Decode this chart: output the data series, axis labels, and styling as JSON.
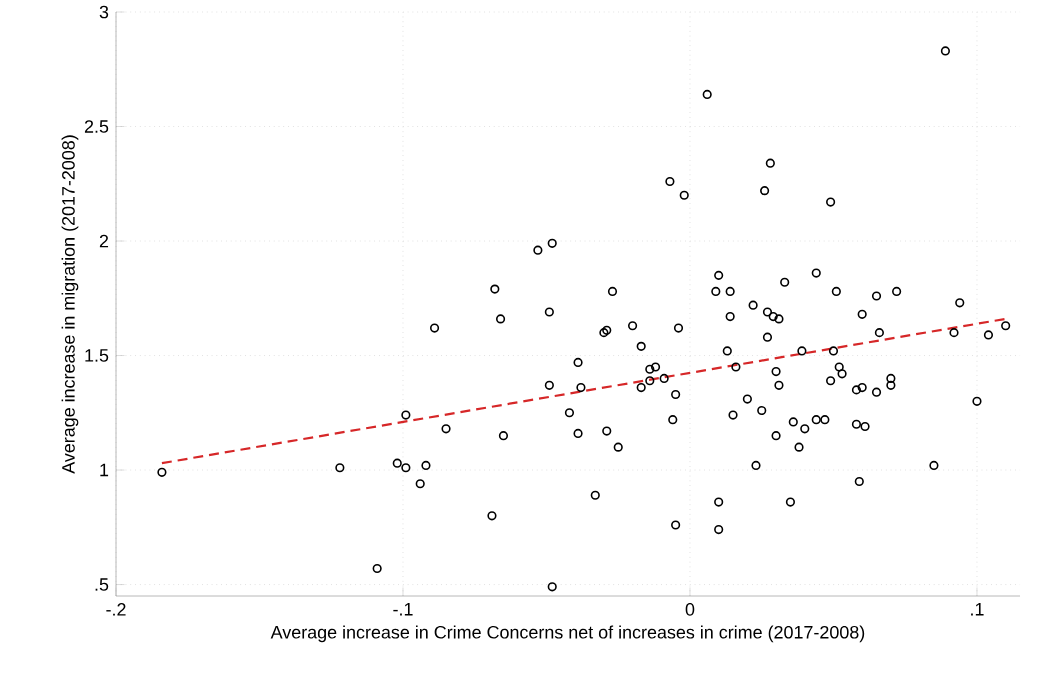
{
  "chart_data": {
    "type": "scatter",
    "xlabel": "Average increase in Crime Concerns net of increases in crime (2017-2008)",
    "ylabel": "Average increase in migration (2017-2008)",
    "xlim": [
      -0.2,
      0.115
    ],
    "ylim": [
      0.45,
      3
    ],
    "xticks": [
      {
        "value": -0.2,
        "label": "-.2"
      },
      {
        "value": -0.1,
        "label": "-.1"
      },
      0,
      {
        "value": 0.1,
        "label": ".1"
      }
    ],
    "yticks": [
      {
        "value": 0.5,
        "label": ".5"
      },
      1,
      1.5,
      2,
      2.5,
      3
    ],
    "grid": true,
    "series": [
      {
        "marker": "circle",
        "color": "#000000",
        "x": [
          -0.068,
          -0.053,
          -0.048,
          0.089,
          0.006,
          -0.007,
          -0.002,
          0.028,
          0.026,
          0.049,
          0.01,
          0.009,
          0.014,
          0.033,
          0.044,
          0.051,
          0.065,
          0.072,
          -0.027,
          0.094,
          -0.049,
          -0.066,
          -0.089,
          -0.049,
          -0.099,
          -0.085,
          -0.065,
          -0.184,
          -0.122,
          -0.102,
          -0.099,
          -0.092,
          -0.094,
          -0.069,
          -0.109,
          -0.048,
          0.022,
          0.014,
          0.027,
          0.029,
          0.031,
          0.06,
          0.066,
          0.092,
          0.104,
          0.11,
          -0.03,
          -0.029,
          -0.02,
          -0.004,
          -0.017,
          -0.039,
          -0.038,
          -0.014,
          -0.012,
          -0.014,
          -0.009,
          -0.017,
          -0.005,
          -0.006,
          -0.042,
          -0.039,
          -0.029,
          -0.025,
          -0.033,
          -0.005,
          0.013,
          0.016,
          0.027,
          0.03,
          0.031,
          0.039,
          0.02,
          0.015,
          0.025,
          0.03,
          0.036,
          0.04,
          0.038,
          0.044,
          0.047,
          0.023,
          0.01,
          0.01,
          0.035,
          0.05,
          0.052,
          0.053,
          0.049,
          0.058,
          0.06,
          0.065,
          0.07,
          0.07,
          0.058,
          0.061,
          0.059,
          0.085,
          0.1
        ],
        "values": [
          1.79,
          1.96,
          1.99,
          2.83,
          2.64,
          2.26,
          2.2,
          2.34,
          2.22,
          2.17,
          1.85,
          1.78,
          1.78,
          1.82,
          1.86,
          1.78,
          1.76,
          1.78,
          1.78,
          1.73,
          1.69,
          1.66,
          1.62,
          1.37,
          1.24,
          1.18,
          1.15,
          0.99,
          1.01,
          1.03,
          1.01,
          1.02,
          0.94,
          0.8,
          0.57,
          0.49,
          1.72,
          1.67,
          1.69,
          1.67,
          1.66,
          1.68,
          1.6,
          1.6,
          1.59,
          1.63,
          1.6,
          1.61,
          1.63,
          1.62,
          1.54,
          1.47,
          1.36,
          1.44,
          1.45,
          1.39,
          1.4,
          1.36,
          1.33,
          1.22,
          1.25,
          1.16,
          1.17,
          1.1,
          0.89,
          0.76,
          1.52,
          1.45,
          1.58,
          1.43,
          1.37,
          1.52,
          1.31,
          1.24,
          1.26,
          1.15,
          1.21,
          1.18,
          1.1,
          1.22,
          1.22,
          1.02,
          0.86,
          0.74,
          0.86,
          1.52,
          1.45,
          1.42,
          1.39,
          1.35,
          1.36,
          1.34,
          1.37,
          1.4,
          1.2,
          1.19,
          0.95,
          1.02,
          1.3
        ]
      },
      {
        "type": "line",
        "color": "#d62728",
        "line_style": "dashed",
        "x": [
          -0.184,
          0.11
        ],
        "values": [
          1.03,
          1.66
        ]
      }
    ]
  }
}
